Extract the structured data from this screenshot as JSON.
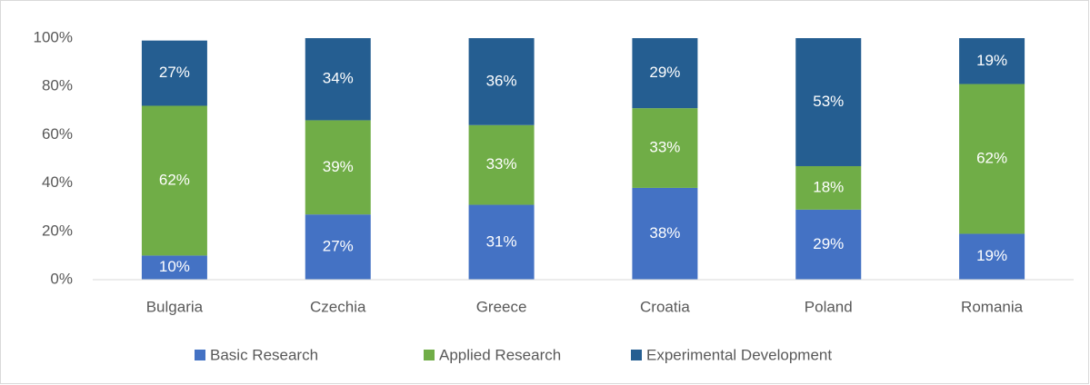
{
  "chart_data": {
    "type": "stacked_bar",
    "categories": [
      "Bulgaria",
      "Czechia",
      "Greece",
      "Croatia",
      "Poland",
      "Romania"
    ],
    "series": [
      {
        "name": "Basic Research",
        "color": "#4472c4",
        "values": [
          10,
          27,
          31,
          38,
          29,
          19
        ],
        "value_labels": [
          "10%",
          "27%",
          "31%",
          "38%",
          "29%",
          "19%"
        ]
      },
      {
        "name": "Applied Research",
        "color": "#70ad47",
        "values": [
          62,
          39,
          33,
          33,
          18,
          62
        ],
        "value_labels": [
          "62%",
          "39%",
          "33%",
          "33%",
          "18%",
          "62%"
        ]
      },
      {
        "name": "Experimental Development",
        "color": "#255e91",
        "values": [
          27,
          34,
          36,
          29,
          53,
          19
        ],
        "value_labels": [
          "27%",
          "34%",
          "36%",
          "29%",
          "53%",
          "19%"
        ]
      }
    ],
    "ylim": [
      0,
      100
    ],
    "yticks": [
      {
        "value": 0,
        "label": "0%"
      },
      {
        "value": 20,
        "label": "20%"
      },
      {
        "value": 40,
        "label": "40%"
      },
      {
        "value": 60,
        "label": "60%"
      },
      {
        "value": 80,
        "label": "80%"
      },
      {
        "value": 100,
        "label": "100%"
      }
    ],
    "grid": false,
    "legend": "bottom"
  }
}
